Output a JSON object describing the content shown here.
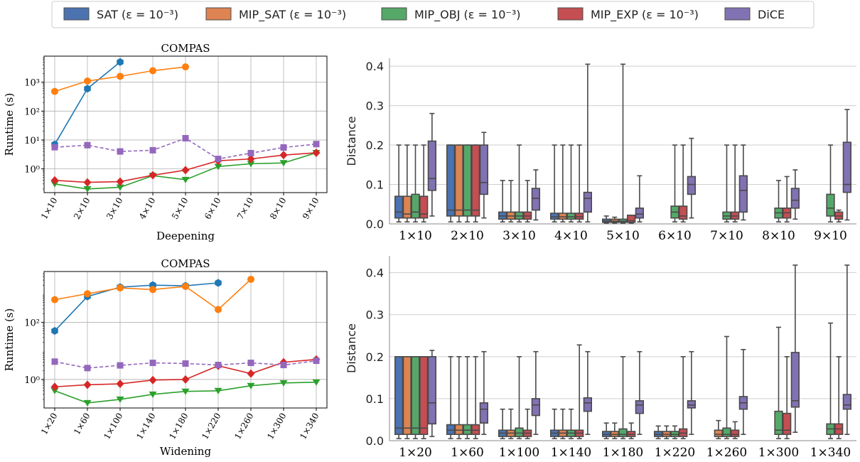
{
  "legend": {
    "entries": [
      {
        "name": "SAT (ε = 10⁻³)",
        "color": "#4c72b0",
        "boxColor": "#4c72b0"
      },
      {
        "name": "MIP_SAT (ε = 10⁻³)",
        "color": "#dd8452",
        "boxColor": "#dd8452"
      },
      {
        "name": "MIP_OBJ (ε = 10⁻³)",
        "color": "#55a868",
        "boxColor": "#55a868"
      },
      {
        "name": "MIP_EXP (ε = 10⁻³)",
        "color": "#c44e52",
        "boxColor": "#c44e52"
      },
      {
        "name": "DiCE",
        "color": "#8172b3",
        "boxColor": "#8172b3"
      }
    ],
    "placement": "top-center"
  },
  "chart_data": [
    {
      "type": "line",
      "title": "COMPAS",
      "xlabel": "Deepening",
      "ylabel": "Runtime (s)",
      "yscale": "log",
      "ylim": [
        0.15,
        8000
      ],
      "yticks": [
        1,
        10,
        100,
        1000
      ],
      "ytick_labels": [
        "10⁰",
        "10¹",
        "10²",
        "10³"
      ],
      "grid": true,
      "categories": [
        "1×10",
        "2×10",
        "3×10",
        "4×10",
        "5×10",
        "6×10",
        "7×10",
        "8×10",
        "9×10"
      ],
      "series": [
        {
          "key": "sat",
          "values": [
            7,
            600,
            5000,
            null,
            null,
            null,
            null,
            null,
            null
          ],
          "color": "#1f77b4",
          "marker": "hexagon",
          "dash": false
        },
        {
          "key": "mip_sat",
          "values": [
            480,
            1100,
            1600,
            2500,
            3400,
            null,
            null,
            null,
            null
          ],
          "color": "#ff7f0e",
          "marker": "circle",
          "dash": false
        },
        {
          "key": "mip_obj",
          "values": [
            0.3,
            0.2,
            0.23,
            0.58,
            0.42,
            1.2,
            1.5,
            1.6,
            3.6
          ],
          "color": "#2ca02c",
          "marker": "triangle",
          "dash": false
        },
        {
          "key": "mip_exp",
          "values": [
            0.4,
            0.34,
            0.36,
            0.6,
            0.9,
            1.9,
            2.2,
            3.0,
            3.6
          ],
          "color": "#d62728",
          "marker": "diamond",
          "dash": false
        },
        {
          "key": "dice",
          "values": [
            5.6,
            6.6,
            4.0,
            4.4,
            11.5,
            2.2,
            3.5,
            5.5,
            7.2
          ],
          "color": "#9467bd",
          "marker": "square",
          "dash": true
        }
      ]
    },
    {
      "type": "box",
      "ylabel": "Distance",
      "ylim": [
        0.0,
        0.42
      ],
      "yticks": [
        0.0,
        0.1,
        0.2,
        0.3,
        0.4
      ],
      "ytick_labels": [
        "0.0",
        "0.1",
        "0.2",
        "0.3",
        "0.4"
      ],
      "grid": true,
      "categories": [
        "1×10",
        "2×10",
        "3×10",
        "4×10",
        "5×10",
        "6×10",
        "7×10",
        "8×10",
        "9×10"
      ],
      "boxes": [
        [
          [
            0.005,
            0.015,
            0.03,
            0.07,
            0.2
          ],
          [
            0.005,
            0.015,
            0.025,
            0.07,
            0.2
          ],
          [
            0.005,
            0.015,
            0.03,
            0.075,
            0.2
          ],
          [
            0.005,
            0.015,
            0.025,
            0.07,
            0.2
          ],
          [
            0.02,
            0.085,
            0.115,
            0.21,
            0.28
          ]
        ],
        [
          [
            0.005,
            0.02,
            0.035,
            0.2,
            0.2
          ],
          [
            0.005,
            0.02,
            0.035,
            0.2,
            0.2
          ],
          [
            0.005,
            0.02,
            0.035,
            0.2,
            0.2
          ],
          [
            0.005,
            0.02,
            0.035,
            0.2,
            0.2
          ],
          [
            0.015,
            0.075,
            0.105,
            0.2,
            0.232
          ]
        ],
        [
          [
            0.005,
            0.012,
            0.02,
            0.03,
            0.11
          ],
          [
            0.005,
            0.012,
            0.02,
            0.03,
            0.11
          ],
          [
            0.005,
            0.012,
            0.02,
            0.03,
            0.2
          ],
          [
            0.005,
            0.012,
            0.02,
            0.03,
            0.11
          ],
          [
            0.01,
            0.035,
            0.065,
            0.09,
            0.137
          ]
        ],
        [
          [
            0.005,
            0.012,
            0.018,
            0.027,
            0.2
          ],
          [
            0.005,
            0.012,
            0.018,
            0.027,
            0.2
          ],
          [
            0.005,
            0.012,
            0.018,
            0.027,
            0.2
          ],
          [
            0.005,
            0.012,
            0.018,
            0.027,
            0.2
          ],
          [
            0.005,
            0.03,
            0.065,
            0.08,
            0.405
          ]
        ],
        [
          [
            0.002,
            0.004,
            0.007,
            0.012,
            0.02
          ],
          [
            0.002,
            0.004,
            0.007,
            0.012,
            0.017
          ],
          [
            0.002,
            0.004,
            0.007,
            0.012,
            0.405
          ],
          [
            0.002,
            0.004,
            0.008,
            0.022,
            0.02
          ],
          [
            0.005,
            0.015,
            0.025,
            0.04,
            0.122
          ]
        ],
        [
          [
            null,
            null,
            null,
            null,
            null
          ],
          [
            null,
            null,
            null,
            null,
            null
          ],
          [
            0.005,
            0.015,
            0.03,
            0.045,
            0.2
          ],
          [
            0.005,
            0.012,
            0.02,
            0.045,
            0.2
          ],
          [
            0.015,
            0.075,
            0.1,
            0.12,
            0.217
          ]
        ],
        [
          [
            null,
            null,
            null,
            null,
            null
          ],
          [
            null,
            null,
            null,
            null,
            null
          ],
          [
            0.005,
            0.012,
            0.02,
            0.03,
            0.2
          ],
          [
            0.005,
            0.012,
            0.02,
            0.03,
            0.2
          ],
          [
            0.01,
            0.03,
            0.085,
            0.122,
            0.2
          ]
        ],
        [
          [
            null,
            null,
            null,
            null,
            null
          ],
          [
            null,
            null,
            null,
            null,
            null
          ],
          [
            0.005,
            0.015,
            0.028,
            0.04,
            0.11
          ],
          [
            0.005,
            0.015,
            0.028,
            0.04,
            0.12
          ],
          [
            0.012,
            0.04,
            0.06,
            0.09,
            0.137
          ]
        ],
        [
          [
            null,
            null,
            null,
            null,
            null
          ],
          [
            null,
            null,
            null,
            null,
            null
          ],
          [
            0.005,
            0.02,
            0.04,
            0.075,
            0.2
          ],
          [
            0.005,
            0.012,
            0.02,
            0.03,
            0.035
          ],
          [
            0.01,
            0.08,
            0.1,
            0.207,
            0.29
          ]
        ]
      ]
    },
    {
      "type": "line",
      "title": "COMPAS",
      "xlabel": "Widening",
      "ylabel": "Runtime (s)",
      "yscale": "log",
      "ylim": [
        0.1,
        6000
      ],
      "yticks": [
        1,
        100
      ],
      "ytick_labels": [
        "10⁰",
        "10²"
      ],
      "grid": true,
      "categories": [
        "1×20",
        "1×60",
        "1×100",
        "1×140",
        "1×180",
        "1×220",
        "1×260",
        "1×300",
        "1×340"
      ],
      "series": [
        {
          "key": "sat",
          "values": [
            50,
            800,
            1700,
            2000,
            1900,
            2400,
            null,
            null,
            null
          ],
          "color": "#1f77b4",
          "marker": "hexagon",
          "dash": false
        },
        {
          "key": "mip_sat",
          "values": [
            620,
            1000,
            1600,
            1400,
            1800,
            280,
            3200,
            null,
            null
          ],
          "color": "#ff7f0e",
          "marker": "circle",
          "dash": false
        },
        {
          "key": "mip_obj",
          "values": [
            0.4,
            0.15,
            0.2,
            0.3,
            0.38,
            0.4,
            0.6,
            0.75,
            0.8
          ],
          "color": "#2ca02c",
          "marker": "triangle",
          "dash": false
        },
        {
          "key": "mip_exp",
          "values": [
            0.55,
            0.65,
            0.7,
            0.95,
            1.0,
            3.0,
            1.6,
            4.0,
            5.0
          ],
          "color": "#d62728",
          "marker": "diamond",
          "dash": false
        },
        {
          "key": "dice",
          "values": [
            4.2,
            2.5,
            3.1,
            3.8,
            3.6,
            3.2,
            3.8,
            3.2,
            4.5
          ],
          "color": "#9467bd",
          "marker": "square",
          "dash": true
        }
      ]
    },
    {
      "type": "box",
      "ylabel": "Distance",
      "ylim": [
        0.0,
        0.44
      ],
      "yticks": [
        0.0,
        0.1,
        0.2,
        0.3,
        0.4
      ],
      "ytick_labels": [
        "0.0",
        "0.1",
        "0.2",
        "0.3",
        "0.4"
      ],
      "grid": true,
      "categories": [
        "1×20",
        "1×60",
        "1×100",
        "1×140",
        "1×180",
        "1×220",
        "1×260",
        "1×300",
        "1×340"
      ],
      "boxes": [
        [
          [
            0.005,
            0.015,
            0.03,
            0.2,
            0.2
          ],
          [
            0.005,
            0.015,
            0.03,
            0.2,
            0.2
          ],
          [
            0.005,
            0.015,
            0.03,
            0.2,
            0.2
          ],
          [
            0.005,
            0.015,
            0.03,
            0.2,
            0.2
          ],
          [
            0.01,
            0.04,
            0.09,
            0.2,
            0.215
          ]
        ],
        [
          [
            0.005,
            0.015,
            0.025,
            0.038,
            0.2
          ],
          [
            0.005,
            0.015,
            0.025,
            0.038,
            0.2
          ],
          [
            0.005,
            0.015,
            0.025,
            0.038,
            0.2
          ],
          [
            0.005,
            0.015,
            0.025,
            0.038,
            0.2
          ],
          [
            0.015,
            0.042,
            0.075,
            0.09,
            0.212
          ]
        ],
        [
          [
            0.005,
            0.01,
            0.018,
            0.025,
            0.075
          ],
          [
            0.005,
            0.01,
            0.018,
            0.025,
            0.075
          ],
          [
            0.005,
            0.01,
            0.018,
            0.03,
            0.2
          ],
          [
            0.005,
            0.01,
            0.018,
            0.025,
            0.075
          ],
          [
            0.015,
            0.06,
            0.085,
            0.1,
            0.212
          ]
        ],
        [
          [
            0.005,
            0.01,
            0.018,
            0.025,
            0.075
          ],
          [
            0.005,
            0.01,
            0.018,
            0.025,
            0.075
          ],
          [
            0.005,
            0.01,
            0.018,
            0.025,
            0.075
          ],
          [
            0.005,
            0.01,
            0.018,
            0.025,
            0.228
          ],
          [
            0.015,
            0.07,
            0.09,
            0.102,
            0.212
          ]
        ],
        [
          [
            0.005,
            0.01,
            0.015,
            0.022,
            0.042
          ],
          [
            0.005,
            0.01,
            0.015,
            0.022,
            0.042
          ],
          [
            0.005,
            0.01,
            0.015,
            0.028,
            0.2
          ],
          [
            0.005,
            0.01,
            0.015,
            0.022,
            0.042
          ],
          [
            0.015,
            0.065,
            0.085,
            0.095,
            0.212
          ]
        ],
        [
          [
            0.005,
            0.01,
            0.015,
            0.022,
            0.035
          ],
          [
            0.005,
            0.01,
            0.015,
            0.022,
            0.035
          ],
          [
            0.005,
            0.01,
            0.015,
            0.022,
            0.035
          ],
          [
            0.005,
            0.01,
            0.018,
            0.028,
            0.2
          ],
          [
            0.015,
            0.078,
            0.085,
            0.095,
            0.212
          ]
        ],
        [
          [
            null,
            null,
            null,
            null,
            null
          ],
          [
            0.005,
            0.01,
            0.015,
            0.025,
            0.048
          ],
          [
            0.005,
            0.01,
            0.015,
            0.03,
            0.248
          ],
          [
            0.005,
            0.01,
            0.015,
            0.025,
            0.045
          ],
          [
            0.015,
            0.075,
            0.09,
            0.105,
            0.217
          ]
        ],
        [
          [
            null,
            null,
            null,
            null,
            null
          ],
          [
            null,
            null,
            null,
            null,
            null
          ],
          [
            0.005,
            0.015,
            0.025,
            0.07,
            0.27
          ],
          [
            0.005,
            0.015,
            0.025,
            0.065,
            0.2
          ],
          [
            0.02,
            0.08,
            0.095,
            0.21,
            0.418
          ]
        ],
        [
          [
            null,
            null,
            null,
            null,
            null
          ],
          [
            null,
            null,
            null,
            null,
            null
          ],
          [
            0.005,
            0.015,
            0.028,
            0.04,
            0.28
          ],
          [
            0.005,
            0.015,
            0.028,
            0.04,
            0.2
          ],
          [
            0.015,
            0.075,
            0.085,
            0.11,
            0.418
          ]
        ]
      ]
    }
  ]
}
